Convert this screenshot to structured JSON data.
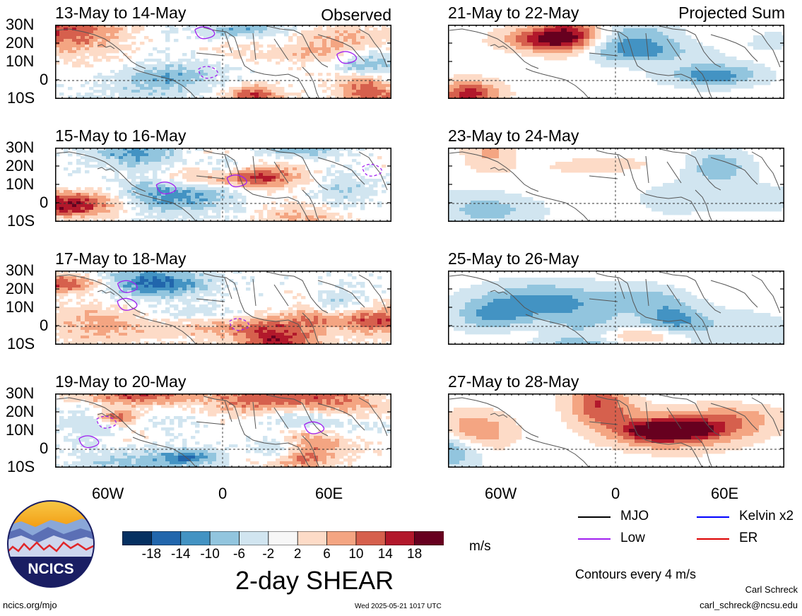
{
  "panels_left": [
    {
      "period": "13-May to 14-May",
      "tag": "Observed"
    },
    {
      "period": "15-May to 16-May",
      "tag": ""
    },
    {
      "period": "17-May to 18-May",
      "tag": ""
    },
    {
      "period": "19-May to 20-May",
      "tag": ""
    }
  ],
  "panels_right": [
    {
      "period": "21-May to 22-May",
      "tag": "Projected Sum"
    },
    {
      "period": "23-May to 24-May",
      "tag": ""
    },
    {
      "period": "25-May to 26-May",
      "tag": ""
    },
    {
      "period": "27-May to 28-May",
      "tag": ""
    }
  ],
  "lat_labels": [
    "30N",
    "20N",
    "10N",
    "0",
    "10S"
  ],
  "lon_labels": [
    "60W",
    "0",
    "60E"
  ],
  "colorbar": {
    "ticks": [
      "-18",
      "-14",
      "-10",
      "-6",
      "-2",
      "2",
      "6",
      "10",
      "14",
      "18"
    ],
    "colors": [
      "#053061",
      "#2166ac",
      "#4393c3",
      "#92c5de",
      "#d1e5f0",
      "#f7f7f7",
      "#fddbc7",
      "#f4a582",
      "#d6604d",
      "#b2182b",
      "#67001f"
    ],
    "units": "m/s",
    "title": "2-day SHEAR"
  },
  "legend": [
    {
      "label": "MJO",
      "color": "#000000"
    },
    {
      "label": "Kelvin x2",
      "color": "#0000ff"
    },
    {
      "label": "Low",
      "color": "#a020f0"
    },
    {
      "label": "ER",
      "color": "#dd0000"
    }
  ],
  "contours_note": "Contours every 4 m/s",
  "author": "Carl Schreck",
  "email": "carl_schreck@ncsu.edu",
  "site": "ncics.org/mjo",
  "timestamp": "Wed 2025-05-21 1017 UTC",
  "logo_text": "NCICS"
}
